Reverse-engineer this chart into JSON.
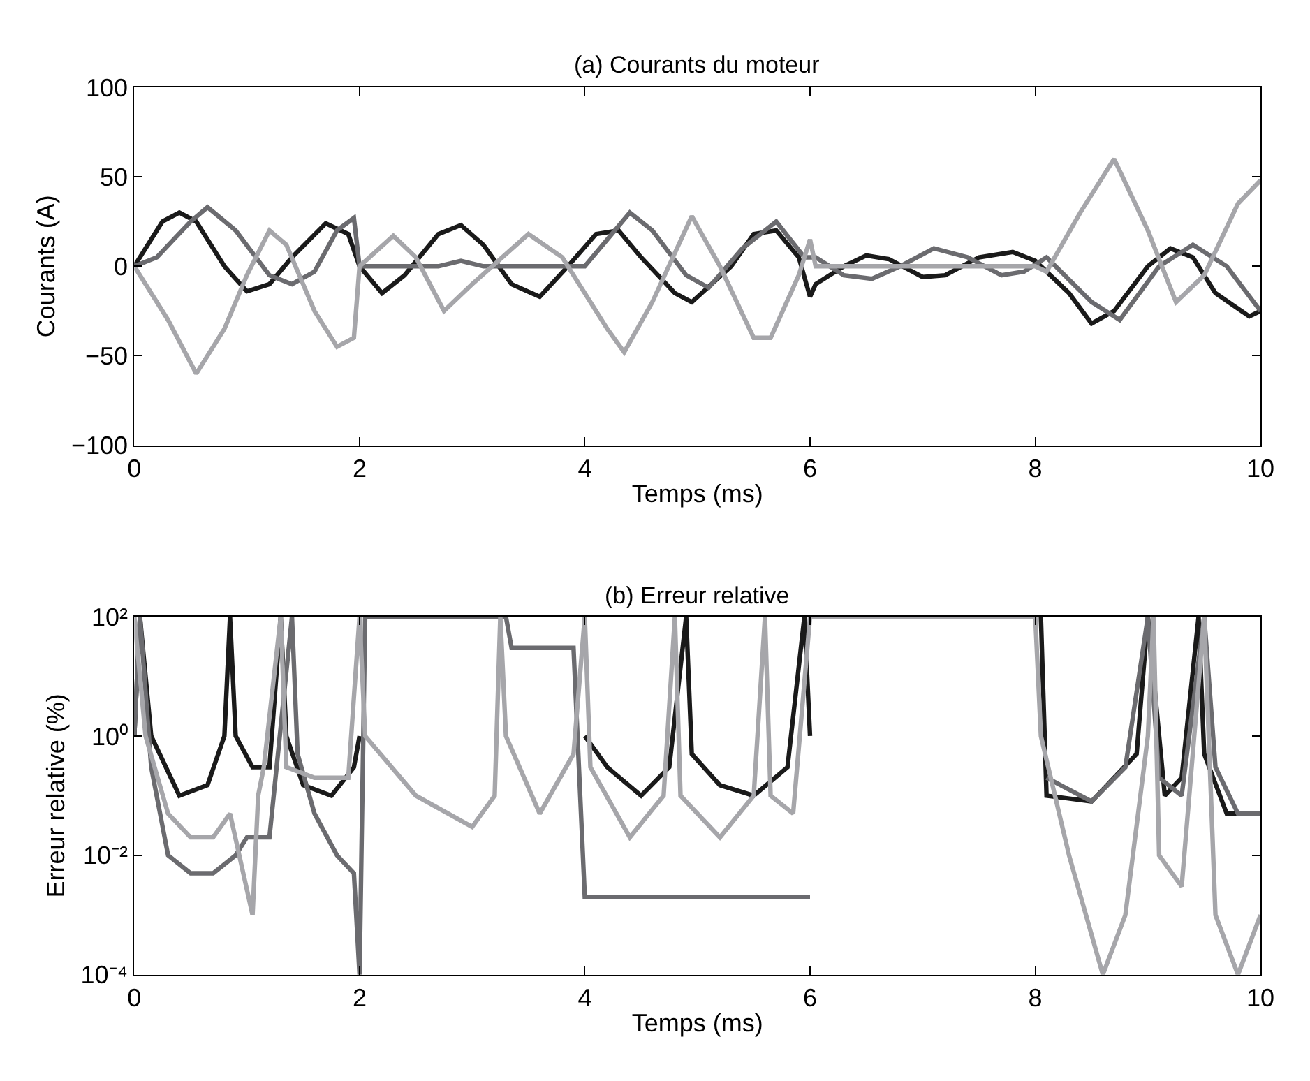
{
  "chart_data": [
    {
      "type": "line",
      "title": "(a) Courants du moteur",
      "xlabel": "Temps (ms)",
      "ylabel": "Courants (A)",
      "xlim": [
        0,
        10
      ],
      "xticks": [
        0,
        2,
        4,
        6,
        8,
        10
      ],
      "ylim": [
        -100,
        100
      ],
      "yticks": [
        {
          "value": -100,
          "label": "−100"
        },
        {
          "value": -50,
          "label": "−50"
        },
        0,
        50,
        100
      ],
      "marker": "none",
      "line_style": "solid",
      "series": [
        {
          "color": "#1a1a1a",
          "x": [
            0,
            0.25,
            0.4,
            0.55,
            0.8,
            1.0,
            1.2,
            1.4,
            1.7,
            1.9,
            2.0,
            2.2,
            2.4,
            2.7,
            2.9,
            3.1,
            3.35,
            3.6,
            3.85,
            4.1,
            4.3,
            4.5,
            4.8,
            4.95,
            5.3,
            5.5,
            5.7,
            5.9,
            6.0,
            6.05,
            6.3,
            6.5,
            6.7,
            7.0,
            7.2,
            7.5,
            7.8,
            8.0,
            8.3,
            8.5,
            8.7,
            9.0,
            9.2,
            9.4,
            9.6,
            9.9,
            10
          ],
          "values": [
            0,
            25,
            30,
            25,
            0,
            -14,
            -10,
            5,
            24,
            18,
            0,
            -15,
            -5,
            18,
            23,
            12,
            -10,
            -17,
            0,
            18,
            20,
            5,
            -15,
            -20,
            0,
            18,
            20,
            5,
            -17,
            -10,
            0,
            6,
            4,
            -6,
            -5,
            5,
            8,
            3,
            -15,
            -32,
            -25,
            0,
            10,
            5,
            -15,
            -28,
            -25
          ]
        },
        {
          "color": "#6b6b6f",
          "x": [
            0,
            0.2,
            0.5,
            0.65,
            0.9,
            1.2,
            1.4,
            1.6,
            1.8,
            1.95,
            2.0,
            2.7,
            2.9,
            3.1,
            4.0,
            4.2,
            4.4,
            4.6,
            4.9,
            5.1,
            5.4,
            5.7,
            5.95,
            6.05,
            6.3,
            6.55,
            6.8,
            7.1,
            7.4,
            7.7,
            7.9,
            8.1,
            8.5,
            8.75,
            9.1,
            9.4,
            9.7,
            10
          ],
          "values": [
            0,
            5,
            25,
            33,
            20,
            -5,
            -10,
            -3,
            20,
            27,
            0,
            0,
            3,
            0,
            0,
            15,
            30,
            20,
            -5,
            -12,
            10,
            25,
            5,
            5,
            -5,
            -7,
            0,
            10,
            5,
            -5,
            -3,
            5,
            -20,
            -30,
            0,
            12,
            0,
            -25
          ]
        },
        {
          "color": "#a6a6aa",
          "x": [
            0,
            0.3,
            0.55,
            0.8,
            1.0,
            1.2,
            1.35,
            1.6,
            1.8,
            1.95,
            2.0,
            2.3,
            2.5,
            2.75,
            3.0,
            3.5,
            3.8,
            4.2,
            4.35,
            4.6,
            4.95,
            5.2,
            5.5,
            5.65,
            5.9,
            6.0,
            6.05,
            8.0,
            8.1,
            8.4,
            8.7,
            9.0,
            9.25,
            9.5,
            9.8,
            10
          ],
          "values": [
            0,
            -30,
            -60,
            -35,
            -5,
            20,
            12,
            -25,
            -45,
            -40,
            0,
            17,
            5,
            -25,
            -10,
            18,
            5,
            -35,
            -48,
            -20,
            28,
            0,
            -40,
            -40,
            -5,
            15,
            0,
            0,
            -3,
            30,
            60,
            20,
            -20,
            -5,
            35,
            48
          ]
        }
      ]
    },
    {
      "type": "line",
      "title": "(b) Erreur relative",
      "xlabel": "Temps (ms)",
      "ylabel": "Erreur relative (%)",
      "log": "y",
      "xlim": [
        0,
        10
      ],
      "xticks": [
        0,
        2,
        4,
        6,
        8,
        10
      ],
      "ylim": [
        0.0001,
        100
      ],
      "yticks": [
        {
          "value": 0.0001,
          "label": "10⁻⁴"
        },
        {
          "value": 0.01,
          "label": "10⁻²"
        },
        {
          "value": 1,
          "label": "10⁰"
        },
        {
          "value": 100,
          "label": "10²"
        }
      ],
      "marker": "none",
      "line_style": "solid",
      "series": [
        {
          "color": "#1a1a1a",
          "x": [
            0,
            0.05,
            0.15,
            0.4,
            0.65,
            0.8,
            0.85,
            0.9,
            1.05,
            1.2,
            1.3,
            1.35,
            1.5,
            1.75,
            1.95,
            2.0,
            3.0,
            4.0,
            4.2,
            4.5,
            4.75,
            4.9,
            4.95,
            5.2,
            5.5,
            5.8,
            5.95,
            6.0,
            8.0,
            8.05,
            8.1,
            8.5,
            8.9,
            9.0,
            9.1,
            9.15,
            9.3,
            9.45,
            9.5,
            9.7,
            10
          ],
          "values": [
            1,
            100,
            1,
            0.1,
            0.15,
            1,
            100,
            1,
            0.3,
            0.3,
            100,
            1,
            0.15,
            0.1,
            0.3,
            1,
            null,
            1,
            0.3,
            0.1,
            0.3,
            100,
            0.5,
            0.15,
            0.1,
            0.3,
            100,
            1,
            null,
            100,
            0.1,
            0.08,
            0.5,
            100,
            1,
            0.1,
            0.2,
            100,
            0.5,
            0.05,
            0.05
          ]
        },
        {
          "color": "#6b6b6f",
          "x": [
            0,
            0.05,
            0.15,
            0.3,
            0.5,
            0.7,
            0.9,
            1.0,
            1.2,
            1.4,
            1.45,
            1.6,
            1.8,
            1.95,
            2.0,
            2.05,
            3.3,
            3.35,
            3.9,
            4.0,
            4.5,
            5.0,
            5.5,
            6.0,
            8.0,
            8.1,
            8.5,
            8.8,
            9.0,
            9.1,
            9.3,
            9.5,
            9.6,
            9.8,
            10
          ],
          "values": [
            1,
            100,
            0.3,
            0.01,
            0.005,
            0.005,
            0.01,
            0.02,
            0.02,
            100,
            0.5,
            0.05,
            0.01,
            0.005,
            0.0001,
            100,
            100,
            30,
            30,
            0.002,
            0.002,
            0.002,
            0.002,
            0.002,
            null,
            0.2,
            0.08,
            0.3,
            100,
            0.2,
            0.1,
            100,
            0.3,
            0.05,
            0.05
          ]
        },
        {
          "color": "#a6a6aa",
          "x": [
            0,
            0.1,
            0.3,
            0.5,
            0.7,
            0.85,
            1.05,
            1.1,
            1.15,
            1.3,
            1.35,
            1.6,
            1.9,
            2.0,
            2.05,
            2.5,
            3.0,
            3.2,
            3.25,
            3.3,
            3.6,
            3.9,
            4.0,
            4.05,
            4.4,
            4.7,
            4.8,
            4.85,
            5.2,
            5.5,
            5.6,
            5.65,
            5.85,
            6.0,
            7.0,
            8.0,
            8.05,
            8.3,
            8.6,
            8.8,
            9.0,
            9.05,
            9.1,
            9.3,
            9.5,
            9.6,
            9.8,
            10
          ],
          "values": [
            100,
            1,
            0.05,
            0.02,
            0.02,
            0.05,
            0.001,
            0.1,
            0.3,
            100,
            0.3,
            0.2,
            0.2,
            100,
            1,
            0.1,
            0.03,
            0.1,
            100,
            1,
            0.05,
            0.5,
            100,
            0.3,
            0.02,
            0.1,
            100,
            0.1,
            0.02,
            0.1,
            100,
            0.1,
            0.05,
            100,
            100,
            100,
            1,
            0.01,
            0.0001,
            0.001,
            1,
            100,
            0.01,
            0.003,
            100,
            0.001,
            0.0001,
            0.001
          ]
        }
      ]
    }
  ]
}
